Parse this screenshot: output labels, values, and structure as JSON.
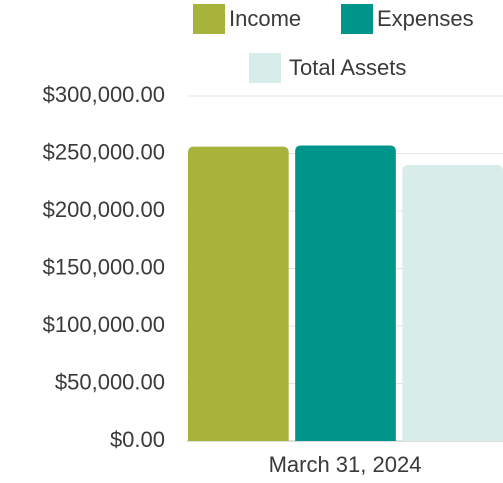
{
  "chart_data": {
    "type": "bar",
    "categories": [
      "March 31, 2024"
    ],
    "series": [
      {
        "name": "Income",
        "color": "#a8b33c",
        "values": [
          256000
        ]
      },
      {
        "name": "Expenses",
        "color": "#00958a",
        "values": [
          257000
        ]
      },
      {
        "name": "Total Assets",
        "color": "#d8ecea",
        "values": [
          240000
        ]
      }
    ],
    "ylim": [
      0,
      300000
    ],
    "yticks": [
      {
        "value": 0,
        "label": "$0.00"
      },
      {
        "value": 50000,
        "label": "$50,000.00"
      },
      {
        "value": 100000,
        "label": "$100,000.00"
      },
      {
        "value": 150000,
        "label": "$150,000.00"
      },
      {
        "value": 200000,
        "label": "$200,000.00"
      },
      {
        "value": 250000,
        "label": "$250,000.00"
      },
      {
        "value": 300000,
        "label": "$300,000.00"
      }
    ],
    "grid": true,
    "legend": "top"
  }
}
